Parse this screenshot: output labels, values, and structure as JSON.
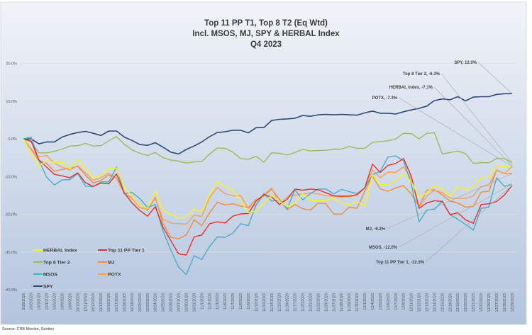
{
  "chart_data": {
    "type": "line",
    "title": [
      "Top 11 PP T1, Top 8 T2  (Eq Wtd)",
      "Incl. MSOS, MJ, SPY & HERBAL Index",
      "Q4 2023"
    ],
    "xlabel": "",
    "ylabel": "",
    "ylim": [
      -40,
      20
    ],
    "yticks": [
      "20.0%",
      "10.0%",
      "0.0%",
      "-10.0%",
      "-20.0%",
      "-30.0%",
      "-40.0%"
    ],
    "ytick_values": [
      20,
      10,
      0,
      -10,
      -20,
      -30,
      -40
    ],
    "grid": true,
    "legend_placement": "bottom-left",
    "x": [
      "9/29/2023",
      "10/2/2023",
      "10/3/2023",
      "10/4/2023",
      "10/5/2023",
      "10/6/2023",
      "10/9/2023",
      "10/10/2023",
      "10/11/2023",
      "10/12/2023",
      "10/13/2023",
      "10/16/2023",
      "10/17/2023",
      "10/18/2023",
      "10/19/2023",
      "10/20/2023",
      "10/23/2023",
      "10/24/2023",
      "10/25/2023",
      "10/26/2023",
      "10/27/2023",
      "10/30/2023",
      "10/31/2023",
      "11/1/2023",
      "11/2/2023",
      "11/3/2023",
      "11/6/2023",
      "11/7/2023",
      "11/8/2023",
      "11/9/2023",
      "11/10/2023",
      "11/13/2023",
      "11/14/2023",
      "11/15/2023",
      "11/16/2023",
      "11/17/2023",
      "11/20/2023",
      "11/21/2023",
      "11/22/2023",
      "11/24/2023",
      "11/27/2023",
      "11/28/2023",
      "11/29/2023",
      "11/30/2023",
      "12/1/2023",
      "12/4/2023",
      "12/5/2023",
      "12/6/2023",
      "12/7/2023",
      "12/8/2023",
      "12/11/2023",
      "12/12/2023",
      "12/13/2023",
      "12/14/2023",
      "12/15/2023",
      "12/18/2023",
      "12/19/2023",
      "12/20/2023",
      "12/21/2023",
      "12/22/2023",
      "12/26/2023",
      "12/27/2023",
      "12/28/2023",
      "12/29/2023"
    ],
    "series": [
      {
        "name": "SPY",
        "color": "#2f4a78",
        "width": 1.6,
        "values": [
          0,
          0,
          -1.3,
          -0.8,
          -0.8,
          0.5,
          1.2,
          1.7,
          2.0,
          1.5,
          0.9,
          2.1,
          2.1,
          0.5,
          -0.4,
          -1.5,
          -1.7,
          -1.0,
          -2.2,
          -3.5,
          -4.0,
          -2.8,
          -1.9,
          -0.8,
          0.6,
          1.7,
          1.9,
          2.3,
          2.3,
          1.6,
          3.0,
          3.0,
          4.9,
          5.2,
          5.3,
          5.5,
          6.2,
          6.0,
          6.4,
          6.5,
          6.4,
          6.5,
          6.4,
          6.3,
          6.9,
          7.4,
          6.8,
          6.8,
          6.6,
          7.2,
          7.7,
          8.1,
          8.7,
          10.2,
          10.6,
          10.4,
          11.2,
          10.1,
          11.1,
          11.2,
          11.2,
          11.8,
          12.0,
          12.0
        ]
      },
      {
        "name": "Top 8 Tier 2",
        "color": "#9bbb59",
        "width": 1.4,
        "values": [
          0,
          -0.8,
          -3.7,
          -3.7,
          -3.3,
          -2.7,
          -1.9,
          -1.8,
          -1.2,
          -1.9,
          -1.8,
          -0.5,
          0.6,
          -1.4,
          -2.9,
          -3.8,
          -4.4,
          -3.6,
          -5.0,
          -5.6,
          -5.9,
          -6.4,
          -6.1,
          -6.0,
          -4.0,
          -2.4,
          -2.5,
          -3.5,
          -5.2,
          -5.4,
          -4.6,
          -6.2,
          -3.7,
          -3.8,
          -4.3,
          -3.6,
          -2.8,
          -3.2,
          -3.1,
          -3.0,
          -2.7,
          -2.7,
          -2.0,
          -2.5,
          -2.5,
          -0.9,
          -0.7,
          -0.5,
          0.0,
          1.5,
          1.4,
          0.0,
          1.5,
          1.6,
          -4.0,
          -3.6,
          -3.2,
          -3.9,
          -6.5,
          -6.3,
          -6.3,
          -5.2,
          -5.2,
          -6.3
        ]
      },
      {
        "name": "MJ",
        "color": "#f08c3c",
        "width": 1.4,
        "values": [
          0,
          -2.8,
          -5.8,
          -6.5,
          -8.6,
          -8.1,
          -7.8,
          -7.3,
          -9.6,
          -11.7,
          -11.0,
          -9.6,
          -10.4,
          -14.6,
          -15.5,
          -17.7,
          -18.9,
          -15.5,
          -22.5,
          -26.1,
          -26.5,
          -25.5,
          -21.5,
          -23.0,
          -19.6,
          -16.8,
          -17.5,
          -17.2,
          -17.8,
          -18.2,
          -16.1,
          -15.2,
          -13.3,
          -16.0,
          -18.8,
          -17.4,
          -18.5,
          -18.9,
          -17.0,
          -17.2,
          -19.9,
          -20.0,
          -18.1,
          -18.4,
          -13.9,
          -9.9,
          -13.3,
          -13.9,
          -13.0,
          -12.4,
          -14.6,
          -17.9,
          -13.6,
          -13.5,
          -14.9,
          -16.5,
          -17.0,
          -18.1,
          -17.9,
          -14.1,
          -13.9,
          -8.3,
          -9.2,
          -9.2
        ]
      },
      {
        "name": "POTX",
        "color": "#f5a05a",
        "width": 1.4,
        "values": [
          0,
          -2.6,
          -4.7,
          -4.4,
          -6.5,
          -7.5,
          -8.3,
          -7.1,
          -9.0,
          -11.0,
          -10.3,
          -9.1,
          -10.5,
          -14.5,
          -15.8,
          -18.2,
          -18.7,
          -15.8,
          -21.3,
          -22.3,
          -22.5,
          -22.6,
          -20.2,
          -20.6,
          -15.5,
          -12.9,
          -14.5,
          -15.1,
          -15.0,
          -18.4,
          -17.5,
          -14.8,
          -13.0,
          -17.5,
          -15.3,
          -14.9,
          -14.6,
          -14.3,
          -14.6,
          -15.1,
          -15.2,
          -15.5,
          -15.3,
          -14.9,
          -13.0,
          -8.2,
          -10.3,
          -8.8,
          -8.9,
          -7.4,
          -10.5,
          -18.1,
          -15.2,
          -13.6,
          -14.3,
          -15.7,
          -15.8,
          -15.8,
          -15.1,
          -12.6,
          -12.4,
          -8.2,
          -9.2,
          -7.3
        ]
      },
      {
        "name": "MSOS",
        "color": "#4bacc6",
        "width": 1.4,
        "values": [
          0,
          0.5,
          -5.7,
          -10.2,
          -12.2,
          -10.9,
          -10.8,
          -9.2,
          -12.5,
          -12.7,
          -11.4,
          -11.4,
          -7.5,
          -14.5,
          -14.2,
          -15.8,
          -18.2,
          -17.4,
          -24.5,
          -29.5,
          -34.0,
          -36.0,
          -31.0,
          -32.0,
          -28.5,
          -26.0,
          -26.1,
          -25.0,
          -22.5,
          -23.0,
          -17.5,
          -14.5,
          -16.5,
          -16.2,
          -18.5,
          -13.5,
          -16.2,
          -14.5,
          -13.3,
          -13.3,
          -14.6,
          -13.4,
          -14.0,
          -14.5,
          -13.0,
          -9.5,
          -8.6,
          -4.8,
          -4.5,
          -5.8,
          -11.9,
          -22.0,
          -18.9,
          -18.7,
          -16.5,
          -20.1,
          -21.3,
          -22.7,
          -24.2,
          -18.4,
          -18.1,
          -10.3,
          -12.6,
          -12.0
        ]
      },
      {
        "name": "Top 11 PP Tier 1",
        "color": "#e8302a",
        "width": 1.4,
        "values": [
          0,
          -0.6,
          -5.6,
          -7.5,
          -9.4,
          -9.8,
          -10.3,
          -9.0,
          -11.6,
          -12.6,
          -11.7,
          -11.9,
          -9.3,
          -14.3,
          -17.0,
          -19.0,
          -20.5,
          -18.0,
          -23.5,
          -27.0,
          -30.5,
          -30.8,
          -26.0,
          -25.5,
          -22.5,
          -22.0,
          -22.3,
          -20.5,
          -19.9,
          -19.8,
          -16.5,
          -14.8,
          -15.4,
          -17.4,
          -16.0,
          -13.3,
          -13.6,
          -13.3,
          -13.5,
          -14.3,
          -15.1,
          -15.2,
          -15.2,
          -14.8,
          -13.0,
          -6.7,
          -8.9,
          -7.0,
          -6.5,
          -5.2,
          -9.9,
          -18.4,
          -17.0,
          -16.4,
          -16.6,
          -20.1,
          -19.6,
          -21.5,
          -22.4,
          -17.4,
          -17.2,
          -16.6,
          -14.9,
          -12.3
        ]
      },
      {
        "name": "HERBAL Index",
        "color": "#f2f230",
        "width": 1.6,
        "values": [
          0,
          -3.9,
          -7.3,
          -5.8,
          -6.3,
          -6.2,
          -7.9,
          -5.5,
          -7.8,
          -10.3,
          -9.6,
          -7.9,
          -7.8,
          -12.8,
          -15.3,
          -17.8,
          -18.4,
          -13.8,
          -19.0,
          -20.1,
          -21.0,
          -20.7,
          -18.6,
          -19.4,
          -14.6,
          -11.3,
          -12.6,
          -13.6,
          -16.5,
          -19.6,
          -19.1,
          -17.0,
          -15.0,
          -16.5,
          -18.0,
          -17.0,
          -14.6,
          -16.4,
          -16.4,
          -16.4,
          -15.8,
          -17.1,
          -17.4,
          -16.6,
          -17.9,
          -9.6,
          -12.1,
          -12.1,
          -11.1,
          -9.2,
          -11.4,
          -15.5,
          -14.3,
          -12.4,
          -13.4,
          -15.2,
          -12.6,
          -13.6,
          -12.7,
          -10.3,
          -10.2,
          -7.0,
          -7.4,
          -7.1
        ]
      }
    ],
    "legend": [
      {
        "name": "HERBAL Index",
        "color": "#f2f230"
      },
      {
        "name": "Top 11 PP Tier 1",
        "color": "#e8302a"
      },
      {
        "name": "Top 8 Tier 2",
        "color": "#9bbb59"
      },
      {
        "name": "MJ",
        "color": "#f08c3c"
      },
      {
        "name": "MSOS",
        "color": "#4bacc6"
      },
      {
        "name": "POTX",
        "color": "#f5a05a"
      },
      {
        "name": "SPY",
        "color": "#2f4a78"
      }
    ],
    "annotations": [
      {
        "text": "SPY, 12.0%",
        "series": "SPY"
      },
      {
        "text": "Top 8 Tier 2, -6.3%",
        "series": "Top 8 Tier 2"
      },
      {
        "text": "HERBAL Index, -7.1%",
        "series": "HERBAL Index"
      },
      {
        "text": "POTX, -7.3%",
        "series": "POTX"
      },
      {
        "text": "MJ, -9.2%",
        "series": "MJ"
      },
      {
        "text": "MSOS, -12.0%",
        "series": "MSOS"
      },
      {
        "text": "Top 11 PP Tier 1, -12.3%",
        "series": "Top 11 PP Tier 1"
      }
    ]
  },
  "source": "Source: CRB Monitor, Sentieo"
}
